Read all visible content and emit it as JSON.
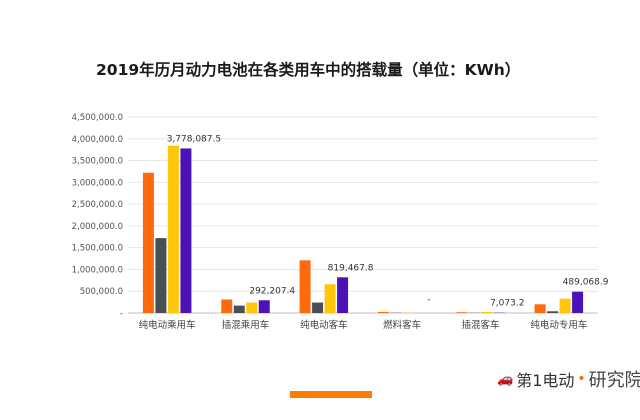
{
  "chart_data": {
    "type": "bar",
    "title": "2019年历月动力电池在各类用车中的搭载量（单位：KWh）",
    "categories": [
      "纯电动乘用车",
      "插混乘用车",
      "纯电动客车",
      "燃料客车",
      "插混客车",
      "纯电动专用车"
    ],
    "series": [
      {
        "name": "series1",
        "color": "#ff6a0f",
        "values": [
          3220000,
          310000,
          1210000,
          25000,
          18000,
          200000
        ]
      },
      {
        "name": "series2",
        "color": "#4a4f55",
        "values": [
          1720000,
          170000,
          240000,
          5000,
          5000,
          40000
        ]
      },
      {
        "name": "series3",
        "color": "#ffc60a",
        "values": [
          3840000,
          240000,
          660000,
          8000,
          22000,
          330000
        ]
      },
      {
        "name": "series4",
        "color": "#4b12b8",
        "values": [
          3778087.5,
          292207.4,
          819467.8,
          0,
          7073.2,
          489068.9
        ]
      }
    ],
    "data_labels": [
      "3,778,087.5",
      "292,207.4",
      "819,467.8",
      "-",
      "7,073.2",
      "489,068.9"
    ],
    "yticks": [
      "-",
      "500,000.0",
      "1,000,000.0",
      "1,500,000.0",
      "2,000,000.0",
      "2,500,000.0",
      "3,000,000.0",
      "3,500,000.0",
      "4,000,000.0",
      "4,500,000.0"
    ],
    "ylim": [
      0,
      4500000
    ],
    "grid": true,
    "legend": "none"
  },
  "footer": {
    "watermark_brand": "第1电动",
    "watermark_suffix": "研究院"
  }
}
